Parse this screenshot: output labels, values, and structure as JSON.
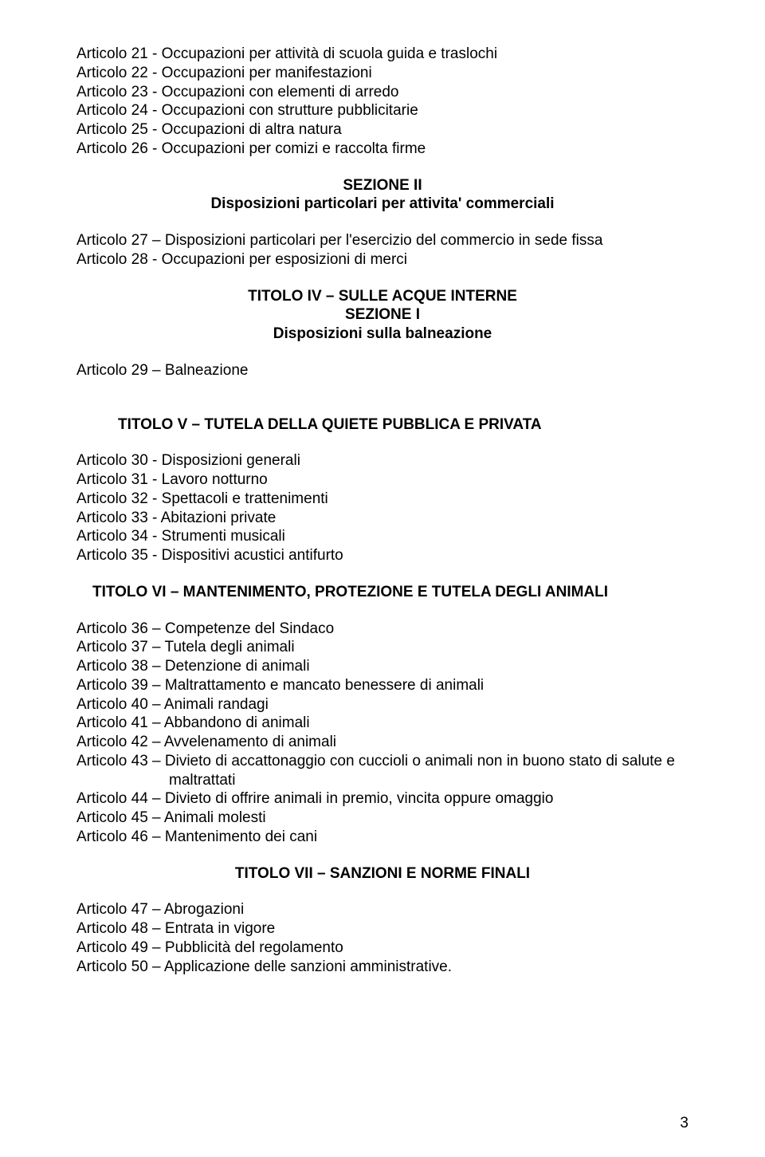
{
  "colors": {
    "background": "#ffffff",
    "text": "#000000"
  },
  "typography": {
    "family": "Arial, Helvetica, sans-serif",
    "body_size_pt": 14,
    "line_height": 1.25
  },
  "page_number": "3",
  "block_top": [
    "Articolo 21 -  Occupazioni per attività di scuola guida e traslochi",
    "Articolo 22 -  Occupazioni per manifestazioni",
    "Articolo 23 -  Occupazioni con elementi di arredo",
    "Articolo 24 -  Occupazioni con strutture pubblicitarie",
    "Articolo 25 -  Occupazioni di altra natura",
    "Articolo 26 -  Occupazioni per comizi e raccolta firme"
  ],
  "sezione2": {
    "title": "SEZIONE II",
    "subtitle": "Disposizioni particolari per attivita' commerciali"
  },
  "block_27_28": [
    "Articolo 27 – Disposizioni particolari per l'esercizio del commercio in sede fissa",
    "Articolo 28 -  Occupazioni per esposizioni di merci"
  ],
  "titolo4": {
    "title": "TITOLO IV – SULLE ACQUE INTERNE",
    "sezione": "SEZIONE I",
    "subtitle": "Disposizioni sulla balneazione"
  },
  "art29": "Articolo 29 –  Balneazione",
  "titolo5": "TITOLO V – TUTELA DELLA QUIETE PUBBLICA E PRIVATA",
  "block_30_35": [
    "Articolo 30 -  Disposizioni generali",
    "Articolo 31 -  Lavoro notturno",
    "Articolo 32 -  Spettacoli e trattenimenti",
    "Articolo 33 -  Abitazioni private",
    "Articolo 34  - Strumenti musicali",
    "Articolo 35 -  Dispositivi acustici antifurto"
  ],
  "titolo6": "TITOLO VI – MANTENIMENTO, PROTEZIONE E TUTELA DEGLI ANIMALI",
  "block_36_46": [
    {
      "text": "Articolo 36 – Competenze del Sindaco",
      "indent": false
    },
    {
      "text": "Articolo 37 – Tutela degli animali",
      "indent": false
    },
    {
      "text": "Articolo 38 – Detenzione di animali",
      "indent": false
    },
    {
      "text": "Articolo 39 – Maltrattamento e mancato benessere di animali",
      "indent": false
    },
    {
      "text": "Articolo 40 – Animali randagi",
      "indent": false
    },
    {
      "text": "Articolo 41 – Abbandono di animali",
      "indent": false
    },
    {
      "text": "Articolo 42 – Avvelenamento di animali",
      "indent": false
    },
    {
      "text": "Articolo 43 – Divieto di accattonaggio con cuccioli o animali non in buono stato di salute e",
      "indent": false
    },
    {
      "text": "maltrattati",
      "indent": true
    },
    {
      "text": "Articolo 44 – Divieto di offrire animali in premio, vincita oppure omaggio",
      "indent": false
    },
    {
      "text": "Articolo 45 – Animali molesti",
      "indent": false
    },
    {
      "text": "Articolo 46 – Mantenimento dei cani",
      "indent": false
    }
  ],
  "titolo7": "TITOLO VII – SANZIONI E NORME FINALI",
  "block_47_50": [
    "Articolo 47 – Abrogazioni",
    "Articolo 48 – Entrata in vigore",
    "Articolo 49 – Pubblicità del regolamento",
    "Articolo 50 – Applicazione delle sanzioni amministrative."
  ]
}
